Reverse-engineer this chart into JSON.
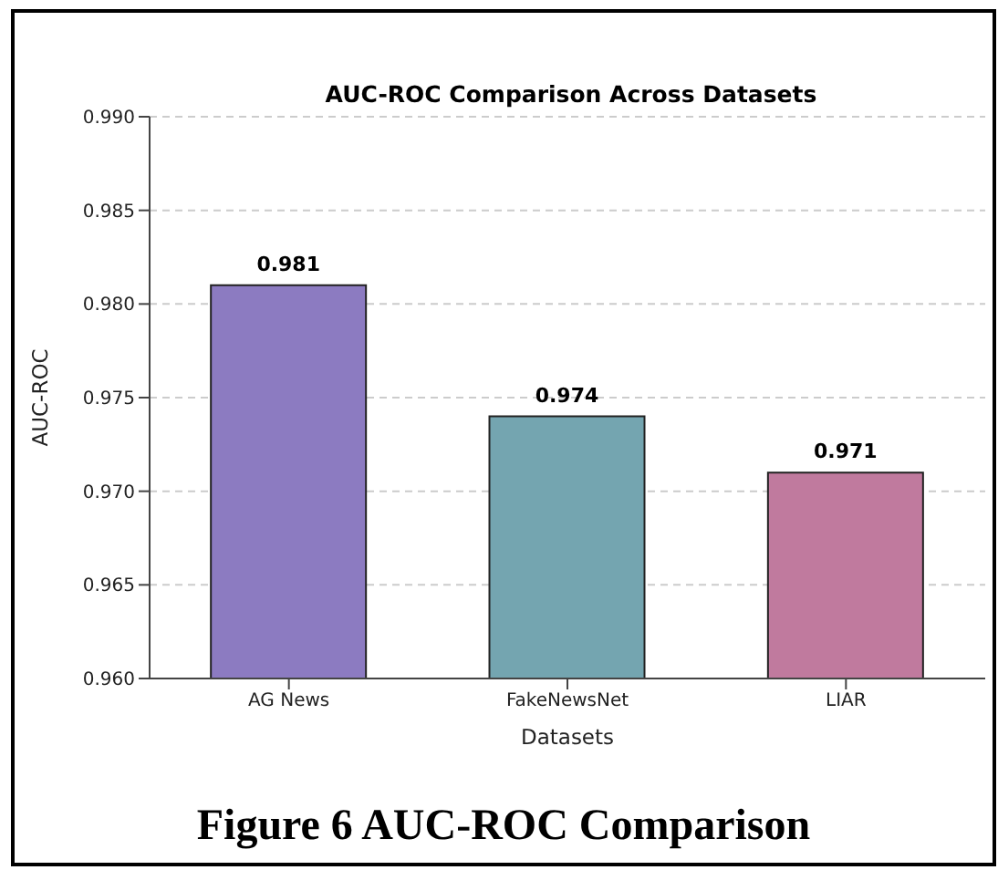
{
  "chart_data": {
    "type": "bar",
    "title": "AUC-ROC Comparison Across Datasets",
    "xlabel": "Datasets",
    "ylabel": "AUC-ROC",
    "categories": [
      "AG News",
      "FakeNewsNet",
      "LIAR"
    ],
    "values": [
      0.981,
      0.974,
      0.971
    ],
    "colors": [
      "#8c7bc1",
      "#74a5b0",
      "#c07a9e"
    ],
    "ylim": [
      0.96,
      0.99
    ],
    "yticks": [
      {
        "value": 0.96,
        "label": "0.960"
      },
      0.965,
      {
        "value": 0.97,
        "label": "0.970"
      },
      0.975,
      {
        "value": 0.98,
        "label": "0.980"
      },
      0.985,
      {
        "value": 0.99,
        "label": "0.990"
      }
    ],
    "grid": "y",
    "data_labels": true,
    "annotations": [
      "Figure 6 AUC-ROC Comparison"
    ]
  }
}
